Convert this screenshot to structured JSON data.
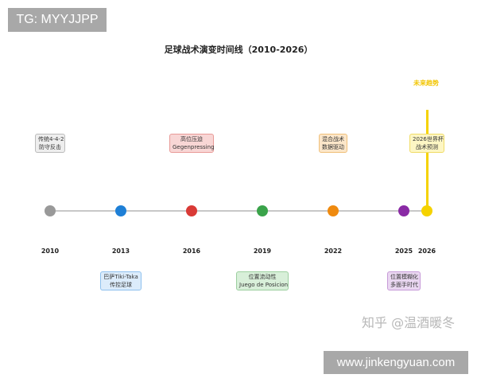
{
  "watermark_top": "TG: MYYJJPP",
  "title": "足球战术演变时间线（2010-2026）",
  "future_label": "未来趋势",
  "timeline": [
    {
      "year": "2010",
      "color": "#999999",
      "label": [
        "传统4-4-2",
        "防守反击"
      ],
      "box_bg": "#eeeeee",
      "box_border": "#bbbbbb"
    },
    {
      "year": "2013",
      "color": "#1e7fd6",
      "label": [
        "巴萨Tiki-Taka",
        "传控足球"
      ],
      "box_bg": "#dcecfb",
      "box_border": "#8fc1ee"
    },
    {
      "year": "2016",
      "color": "#d93a36",
      "label": [
        "高位压迫",
        "Gegenpressing"
      ],
      "box_bg": "#f8d6d5",
      "box_border": "#e89a97"
    },
    {
      "year": "2019",
      "color": "#3aa34a",
      "label": [
        "位置流动性",
        "Juego de Posicion"
      ],
      "box_bg": "#d8efd9",
      "box_border": "#9ccf9f"
    },
    {
      "year": "2022",
      "color": "#ef8a0f",
      "label": [
        "混合战术",
        "数据驱动"
      ],
      "box_bg": "#fbe6c9",
      "box_border": "#f0c07a"
    },
    {
      "year": "2025",
      "color": "#8a2aa5",
      "label": [
        "位置模糊化",
        "多面手时代"
      ],
      "box_bg": "#ead7f1",
      "box_border": "#c79bd8"
    },
    {
      "year": "2026",
      "color": "#f5d200",
      "label": [
        "2026世界杯",
        "战术预测"
      ],
      "box_bg": "#fdf6c4",
      "box_border": "#f0dc66"
    }
  ],
  "watermark_zhihu": "知乎 @温酒暖冬",
  "watermark_url": "www.jinkengyuan.com"
}
